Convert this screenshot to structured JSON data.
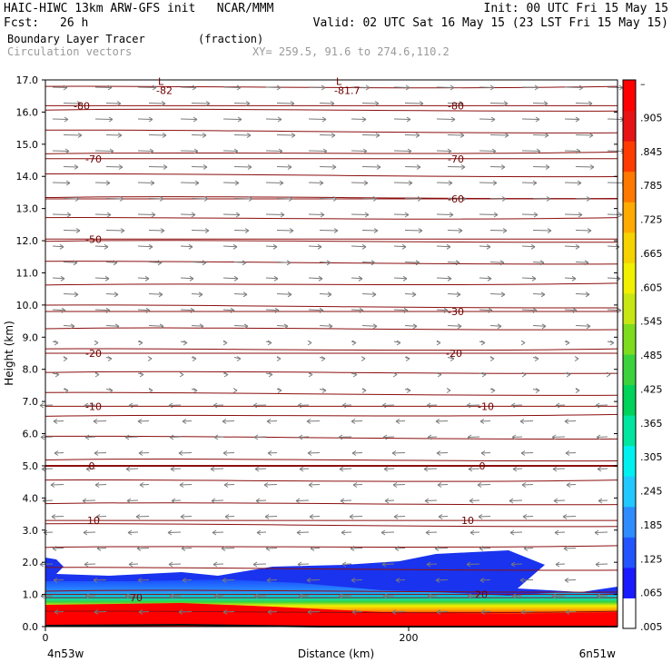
{
  "header": {
    "model": "HAIC-HIWC 13km ARW-GFS init   NCAR/MMM",
    "fcst_label": "Fcst:",
    "fcst_value": "26 h",
    "init": "Init: 00 UTC Fri 15 May 15",
    "valid": "Valid: 02 UTC Sat 16 May 15 (23 LST Fri 15 May 15)",
    "field_name": "Boundary Layer Tracer",
    "field_units": "(fraction)",
    "vectors_label": "Circulation vectors",
    "xy_label": "XY= 259.5, 91.6 to 274.6,110.2"
  },
  "chart_data": {
    "type": "heatmap",
    "title": "Boundary Layer Tracer",
    "units": "(fraction)",
    "xlabel": "Distance (km)",
    "ylabel": "Height (km)",
    "ylim": [
      0,
      17
    ],
    "xlim": [
      0,
      315
    ],
    "yticks": [
      "0.0",
      "1.0",
      "2.0",
      "3.0",
      "4.0",
      "5.0",
      "6.0",
      "7.0",
      "8.0",
      "9.0",
      "10.0",
      "11.0",
      "12.0",
      "13.0",
      "14.0",
      "15.0",
      "16.0",
      "17.0"
    ],
    "xticks": [
      {
        "value": 0,
        "label": "0"
      },
      {
        "value": 200,
        "label": "200"
      }
    ],
    "x_end_labels": {
      "left": "4n53w",
      "right": "6n51w"
    },
    "colorbar_labels": [
      "–",
      ".905",
      ".845",
      ".785",
      ".725",
      ".665",
      ".605",
      ".545",
      ".485",
      ".425",
      ".365",
      ".305",
      ".245",
      ".185",
      ".125",
      ".065",
      ".005"
    ],
    "colorbar_colors": [
      "#ffffff",
      "#1a1aff",
      "#2255ff",
      "#2f8cff",
      "#22c8ff",
      "#00f0f0",
      "#00e6a0",
      "#00d25a",
      "#3cd23c",
      "#7ddc1e",
      "#c8e614",
      "#f0f000",
      "#f5d200",
      "#ffaa00",
      "#ff7800",
      "#ff3c00",
      "#e61414",
      "#ff0000"
    ],
    "isotherms": [
      {
        "label": "-80",
        "height": 16.2
      },
      {
        "label": "-70",
        "height": 14.55
      },
      {
        "label": "-60",
        "height": 13.3
      },
      {
        "label": "-50",
        "height": 12.05
      },
      {
        "label": "-30",
        "height": 9.8
      },
      {
        "label": "-20",
        "height": 8.5
      },
      {
        "label": "-10",
        "height": 6.85
      },
      {
        "label": "0",
        "height": 5.0
      },
      {
        "label": "10",
        "height": 3.3
      },
      {
        "label": "20",
        "height": 1.0
      },
      {
        "label": "70",
        "height": 0.9
      }
    ],
    "lows": [
      {
        "symbol": "L",
        "value": "-82",
        "x_km": 65,
        "height": 16.85
      },
      {
        "symbol": "L",
        "value": "-81.7",
        "x_km": 163,
        "height": 16.85
      }
    ]
  }
}
